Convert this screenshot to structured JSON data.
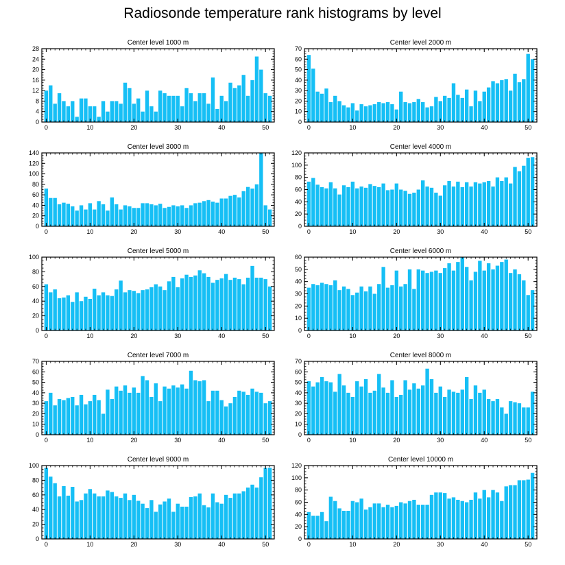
{
  "title": "Radiosonde temperature rank histograms by level",
  "colors": {
    "bar": "#16bff5",
    "axis": "#000000",
    "background": "#ffffff"
  },
  "chart_data": [
    {
      "type": "bar",
      "title": "Center level 1000 m",
      "xlabel": "",
      "ylabel": "",
      "xlim": [
        -1,
        52
      ],
      "ylim": [
        0,
        28
      ],
      "xticks": [
        0,
        10,
        20,
        30,
        40,
        50
      ],
      "yticks": [
        0,
        4,
        8,
        12,
        16,
        20,
        24,
        28
      ],
      "x": [
        0,
        1,
        2,
        3,
        4,
        5,
        6,
        7,
        8,
        9,
        10,
        11,
        12,
        13,
        14,
        15,
        16,
        17,
        18,
        19,
        20,
        21,
        22,
        23,
        24,
        25,
        26,
        27,
        28,
        29,
        30,
        31,
        32,
        33,
        34,
        35,
        36,
        37,
        38,
        39,
        40,
        41,
        42,
        43,
        44,
        45,
        46,
        47,
        48,
        49,
        50,
        51
      ],
      "values": [
        12,
        14,
        7,
        11,
        8,
        6,
        8,
        2,
        9,
        9,
        6,
        6,
        2,
        8,
        4,
        8,
        8,
        7,
        15,
        13,
        7,
        9,
        4,
        12,
        6,
        4,
        12,
        11,
        10,
        10,
        10,
        6,
        13,
        11,
        8,
        11,
        11,
        7,
        17,
        5,
        10,
        8,
        15,
        13,
        14,
        18,
        10,
        16,
        25,
        20,
        11,
        10
      ]
    },
    {
      "type": "bar",
      "title": "Center level 2000 m",
      "xlabel": "",
      "ylabel": "",
      "xlim": [
        -1,
        52
      ],
      "ylim": [
        0,
        70
      ],
      "xticks": [
        0,
        10,
        20,
        30,
        40,
        50
      ],
      "yticks": [
        0,
        10,
        20,
        30,
        40,
        50,
        60,
        70
      ],
      "x": [
        0,
        1,
        2,
        3,
        4,
        5,
        6,
        7,
        8,
        9,
        10,
        11,
        12,
        13,
        14,
        15,
        16,
        17,
        18,
        19,
        20,
        21,
        22,
        23,
        24,
        25,
        26,
        27,
        28,
        29,
        30,
        31,
        32,
        33,
        34,
        35,
        36,
        37,
        38,
        39,
        40,
        41,
        42,
        43,
        44,
        45,
        46,
        47,
        48,
        49,
        50,
        51
      ],
      "values": [
        64,
        51,
        29,
        27,
        32,
        19,
        25,
        20,
        16,
        14,
        18,
        11,
        17,
        15,
        16,
        17,
        19,
        18,
        19,
        17,
        12,
        29,
        19,
        18,
        19,
        22,
        19,
        14,
        15,
        24,
        20,
        25,
        23,
        37,
        26,
        23,
        31,
        15,
        30,
        20,
        29,
        33,
        39,
        37,
        40,
        41,
        30,
        46,
        38,
        41,
        65,
        60
      ]
    },
    {
      "type": "bar",
      "title": "Center level 3000 m",
      "xlabel": "",
      "ylabel": "",
      "xlim": [
        -1,
        52
      ],
      "ylim": [
        0,
        140
      ],
      "xticks": [
        0,
        10,
        20,
        30,
        40,
        50
      ],
      "yticks": [
        0,
        20,
        40,
        60,
        80,
        100,
        120,
        140
      ],
      "x": [
        0,
        1,
        2,
        3,
        4,
        5,
        6,
        7,
        8,
        9,
        10,
        11,
        12,
        13,
        14,
        15,
        16,
        17,
        18,
        19,
        20,
        21,
        22,
        23,
        24,
        25,
        26,
        27,
        28,
        29,
        30,
        31,
        32,
        33,
        34,
        35,
        36,
        37,
        38,
        39,
        40,
        41,
        42,
        43,
        44,
        45,
        46,
        47,
        48,
        49,
        50,
        51
      ],
      "values": [
        72,
        54,
        54,
        42,
        45,
        43,
        38,
        30,
        40,
        32,
        44,
        32,
        48,
        42,
        30,
        55,
        42,
        32,
        40,
        38,
        35,
        35,
        44,
        44,
        42,
        40,
        43,
        35,
        37,
        40,
        38,
        40,
        35,
        40,
        44,
        45,
        48,
        50,
        47,
        45,
        53,
        53,
        58,
        60,
        55,
        67,
        75,
        72,
        80,
        140,
        40,
        32
      ]
    },
    {
      "type": "bar",
      "title": "Center level 4000 m",
      "xlabel": "",
      "ylabel": "",
      "xlim": [
        -1,
        52
      ],
      "ylim": [
        0,
        120
      ],
      "xticks": [
        0,
        10,
        20,
        30,
        40,
        50
      ],
      "yticks": [
        0,
        20,
        40,
        60,
        80,
        100,
        120
      ],
      "x": [
        0,
        1,
        2,
        3,
        4,
        5,
        6,
        7,
        8,
        9,
        10,
        11,
        12,
        13,
        14,
        15,
        16,
        17,
        18,
        19,
        20,
        21,
        22,
        23,
        24,
        25,
        26,
        27,
        28,
        29,
        30,
        31,
        32,
        33,
        34,
        35,
        36,
        37,
        38,
        39,
        40,
        41,
        42,
        43,
        44,
        45,
        46,
        47,
        48,
        49,
        50,
        51
      ],
      "values": [
        73,
        79,
        68,
        64,
        62,
        72,
        62,
        52,
        67,
        64,
        73,
        62,
        65,
        63,
        69,
        66,
        64,
        70,
        59,
        60,
        70,
        60,
        58,
        53,
        55,
        60,
        75,
        65,
        63,
        55,
        50,
        67,
        74,
        65,
        73,
        64,
        72,
        65,
        72,
        70,
        72,
        74,
        65,
        80,
        74,
        80,
        70,
        97,
        90,
        99,
        112,
        113
      ]
    },
    {
      "type": "bar",
      "title": "Center level 5000 m",
      "xlabel": "",
      "ylabel": "",
      "xlim": [
        -1,
        52
      ],
      "ylim": [
        0,
        100
      ],
      "xticks": [
        0,
        10,
        20,
        30,
        40,
        50
      ],
      "yticks": [
        0,
        20,
        40,
        60,
        80,
        100
      ],
      "x": [
        0,
        1,
        2,
        3,
        4,
        5,
        6,
        7,
        8,
        9,
        10,
        11,
        12,
        13,
        14,
        15,
        16,
        17,
        18,
        19,
        20,
        21,
        22,
        23,
        24,
        25,
        26,
        27,
        28,
        29,
        30,
        31,
        32,
        33,
        34,
        35,
        36,
        37,
        38,
        39,
        40,
        41,
        42,
        43,
        44,
        45,
        46,
        47,
        48,
        49,
        50,
        51
      ],
      "values": [
        63,
        52,
        56,
        44,
        45,
        48,
        39,
        52,
        40,
        46,
        43,
        57,
        48,
        52,
        48,
        47,
        56,
        68,
        52,
        55,
        54,
        51,
        55,
        56,
        59,
        63,
        60,
        55,
        67,
        73,
        59,
        71,
        76,
        73,
        75,
        82,
        78,
        73,
        65,
        69,
        71,
        77,
        69,
        72,
        70,
        63,
        72,
        88,
        72,
        72,
        70,
        60
      ]
    },
    {
      "type": "bar",
      "title": "Center level 6000 m",
      "xlabel": "",
      "ylabel": "",
      "xlim": [
        -1,
        52
      ],
      "ylim": [
        0,
        60
      ],
      "xticks": [
        0,
        10,
        20,
        30,
        40,
        50
      ],
      "yticks": [
        0,
        10,
        20,
        30,
        40,
        50,
        60
      ],
      "x": [
        0,
        1,
        2,
        3,
        4,
        5,
        6,
        7,
        8,
        9,
        10,
        11,
        12,
        13,
        14,
        15,
        16,
        17,
        18,
        19,
        20,
        21,
        22,
        23,
        24,
        25,
        26,
        27,
        28,
        29,
        30,
        31,
        32,
        33,
        34,
        35,
        36,
        37,
        38,
        39,
        40,
        41,
        42,
        43,
        44,
        45,
        46,
        47,
        48,
        49,
        50,
        51
      ],
      "values": [
        35,
        38,
        37,
        39,
        38,
        37,
        41,
        33,
        36,
        34,
        29,
        31,
        36,
        32,
        36,
        30,
        38,
        52,
        35,
        37,
        49,
        36,
        38,
        50,
        34,
        50,
        49,
        47,
        48,
        49,
        47,
        51,
        55,
        49,
        56,
        60,
        52,
        41,
        48,
        57,
        49,
        55,
        50,
        53,
        56,
        58,
        47,
        50,
        46,
        41,
        29,
        33
      ]
    },
    {
      "type": "bar",
      "title": "Center level 7000 m",
      "xlabel": "",
      "ylabel": "",
      "xlim": [
        -1,
        52
      ],
      "ylim": [
        0,
        70
      ],
      "xticks": [
        0,
        10,
        20,
        30,
        40,
        50
      ],
      "yticks": [
        0,
        10,
        20,
        30,
        40,
        50,
        60,
        70
      ],
      "x": [
        0,
        1,
        2,
        3,
        4,
        5,
        6,
        7,
        8,
        9,
        10,
        11,
        12,
        13,
        14,
        15,
        16,
        17,
        18,
        19,
        20,
        21,
        22,
        23,
        24,
        25,
        26,
        27,
        28,
        29,
        30,
        31,
        32,
        33,
        34,
        35,
        36,
        37,
        38,
        39,
        40,
        41,
        42,
        43,
        44,
        45,
        46,
        47,
        48,
        49,
        50,
        51
      ],
      "values": [
        32,
        40,
        28,
        34,
        33,
        35,
        36,
        28,
        38,
        29,
        32,
        38,
        33,
        20,
        43,
        34,
        46,
        42,
        47,
        40,
        45,
        40,
        56,
        52,
        36,
        49,
        32,
        46,
        44,
        47,
        45,
        48,
        44,
        61,
        52,
        51,
        52,
        32,
        42,
        42,
        33,
        27,
        30,
        36,
        42,
        41,
        38,
        44,
        41,
        40,
        30,
        32
      ]
    },
    {
      "type": "bar",
      "title": "Center level 8000 m",
      "xlabel": "",
      "ylabel": "",
      "xlim": [
        -1,
        52
      ],
      "ylim": [
        0,
        70
      ],
      "xticks": [
        0,
        10,
        20,
        30,
        40,
        50
      ],
      "yticks": [
        0,
        10,
        20,
        30,
        40,
        50,
        60,
        70
      ],
      "x": [
        0,
        1,
        2,
        3,
        4,
        5,
        6,
        7,
        8,
        9,
        10,
        11,
        12,
        13,
        14,
        15,
        16,
        17,
        18,
        19,
        20,
        21,
        22,
        23,
        24,
        25,
        26,
        27,
        28,
        29,
        30,
        31,
        32,
        33,
        34,
        35,
        36,
        37,
        38,
        39,
        40,
        41,
        42,
        43,
        44,
        45,
        46,
        47,
        48,
        49,
        50,
        51
      ],
      "values": [
        51,
        46,
        50,
        55,
        51,
        50,
        41,
        58,
        47,
        40,
        36,
        51,
        46,
        53,
        40,
        42,
        58,
        45,
        40,
        52,
        36,
        38,
        52,
        43,
        49,
        44,
        47,
        63,
        53,
        40,
        46,
        36,
        43,
        41,
        40,
        43,
        55,
        34,
        47,
        40,
        43,
        34,
        32,
        34,
        26,
        20,
        32,
        31,
        30,
        26,
        26,
        41
      ]
    },
    {
      "type": "bar",
      "title": "Center level 9000 m",
      "xlabel": "",
      "ylabel": "",
      "xlim": [
        -1,
        52
      ],
      "ylim": [
        0,
        100
      ],
      "xticks": [
        0,
        10,
        20,
        30,
        40,
        50
      ],
      "yticks": [
        0,
        20,
        40,
        60,
        80,
        100
      ],
      "x": [
        0,
        1,
        2,
        3,
        4,
        5,
        6,
        7,
        8,
        9,
        10,
        11,
        12,
        13,
        14,
        15,
        16,
        17,
        18,
        19,
        20,
        21,
        22,
        23,
        24,
        25,
        26,
        27,
        28,
        29,
        30,
        31,
        32,
        33,
        34,
        35,
        36,
        37,
        38,
        39,
        40,
        41,
        42,
        43,
        44,
        45,
        46,
        47,
        48,
        49,
        50,
        51
      ],
      "values": [
        97,
        85,
        76,
        58,
        72,
        59,
        71,
        51,
        53,
        62,
        68,
        62,
        58,
        58,
        66,
        64,
        58,
        56,
        62,
        53,
        60,
        52,
        48,
        42,
        53,
        37,
        47,
        51,
        55,
        37,
        48,
        44,
        44,
        57,
        58,
        62,
        46,
        43,
        62,
        50,
        48,
        60,
        56,
        62,
        62,
        65,
        70,
        74,
        70,
        84,
        97,
        97
      ]
    },
    {
      "type": "bar",
      "title": "Center level 10000 m",
      "xlabel": "",
      "ylabel": "",
      "xlim": [
        -1,
        52
      ],
      "ylim": [
        0,
        120
      ],
      "xticks": [
        0,
        10,
        20,
        30,
        40,
        50
      ],
      "yticks": [
        0,
        20,
        40,
        60,
        80,
        100,
        120
      ],
      "x": [
        0,
        1,
        2,
        3,
        4,
        5,
        6,
        7,
        8,
        9,
        10,
        11,
        12,
        13,
        14,
        15,
        16,
        17,
        18,
        19,
        20,
        21,
        22,
        23,
        24,
        25,
        26,
        27,
        28,
        29,
        30,
        31,
        32,
        33,
        34,
        35,
        36,
        37,
        38,
        39,
        40,
        41,
        42,
        43,
        44,
        45,
        46,
        47,
        48,
        49,
        50,
        51
      ],
      "values": [
        44,
        38,
        38,
        44,
        29,
        69,
        62,
        50,
        46,
        46,
        62,
        60,
        66,
        48,
        52,
        58,
        58,
        52,
        56,
        52,
        54,
        60,
        58,
        62,
        64,
        56,
        56,
        56,
        72,
        76,
        76,
        75,
        66,
        68,
        64,
        62,
        60,
        64,
        76,
        66,
        80,
        68,
        80,
        76,
        62,
        86,
        88,
        88,
        96,
        96,
        97,
        108
      ]
    }
  ]
}
